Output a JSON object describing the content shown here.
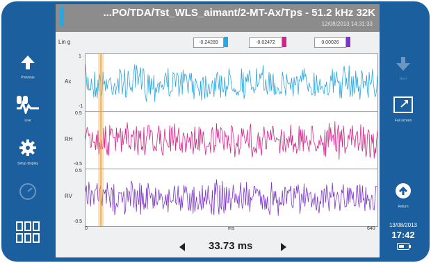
{
  "header": {
    "title": "...PO/TDA/Tst_WLS_aimant/2-MT-Ax/Tps - 51.2 kHz 32K",
    "timestamp": "12/08/2013 14:31:33"
  },
  "plot": {
    "unit_label": "Lin g",
    "cursor_values": [
      {
        "value": "-0.24289",
        "color": "#2aa7e0"
      },
      {
        "value": "-0.02472",
        "color": "#d6238b"
      },
      {
        "value": "0.00026",
        "color": "#7a35c9"
      }
    ],
    "channels": [
      {
        "name": "Ax",
        "ymax": "1",
        "ymin": "-1",
        "color": "#2aa7e0"
      },
      {
        "name": "RH",
        "ymax": "0.5",
        "ymin": "-0.5",
        "color": "#d6238b"
      },
      {
        "name": "RV",
        "ymax": "0.5",
        "ymin": "-0.5",
        "color": "#7a35c9"
      }
    ],
    "x_ticks": [
      "0",
      "ms",
      "640"
    ],
    "cursor_color": "#f2a43a",
    "cursor_position_ms": 33.73,
    "x_max_ms": 640
  },
  "navigation": {
    "time_readout": "33.73 ms",
    "prev_icon": "triangle-left-icon",
    "next_icon": "triangle-right-icon"
  },
  "left_toolbar": [
    {
      "label": "Previous",
      "icon": "arrow-up-icon"
    },
    {
      "label": "Live",
      "icon": "live-signal-icon"
    },
    {
      "label": "Setup display",
      "icon": "gear-icon"
    },
    {
      "label": "",
      "icon": "gauge-icon"
    },
    {
      "label": "",
      "icon": "grid-menu-icon"
    }
  ],
  "right_toolbar": [
    {
      "label": "Next",
      "icon": "arrow-down-icon"
    },
    {
      "label": "Full screen",
      "icon": "full-screen-icon"
    },
    {
      "label": "Return",
      "icon": "return-icon"
    }
  ],
  "status": {
    "date": "13/08/2013",
    "time": "17:42",
    "battery_level": 0.6
  },
  "colors": {
    "frame": "#1b5f9e",
    "title_bar": "#8c8c8c",
    "accent": "#2aa7e0"
  }
}
